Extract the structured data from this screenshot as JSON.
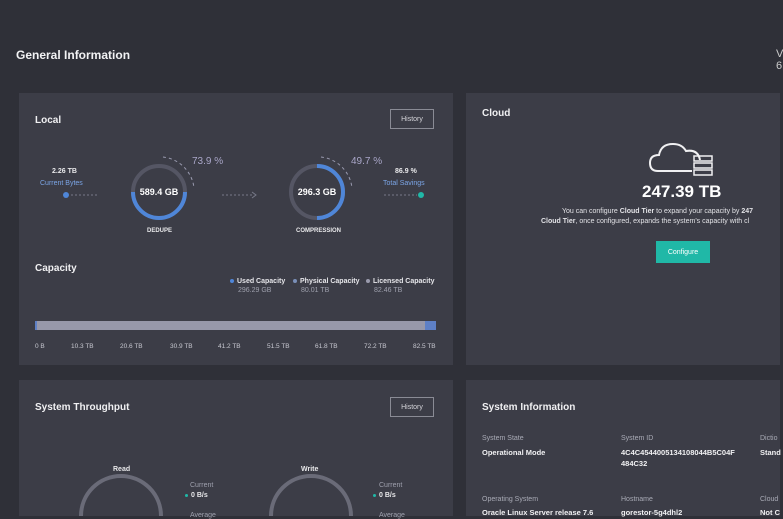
{
  "page": {
    "title": "General Information",
    "corner": "V\n6"
  },
  "local": {
    "title": "Local",
    "history": "History",
    "current_bytes_value": "2.26 TB",
    "current_bytes_label": "Current Bytes",
    "dedupe_value": "589.4 GB",
    "dedupe_pct": "73.9 %",
    "dedupe_label": "DEDUPE",
    "compression_value": "296.3 GB",
    "compression_pct": "49.7 %",
    "compression_label": "COMPRESSION",
    "total_savings_value": "86.9 %",
    "total_savings_label": "Total Savings"
  },
  "capacity": {
    "title": "Capacity",
    "legend": [
      {
        "label": "Used Capacity",
        "value": "296.29 GB",
        "color": "#4f86d8"
      },
      {
        "label": "Physical Capacity",
        "value": "80.01 TB",
        "color": "#7a8fb8"
      },
      {
        "label": "Licensed Capacity",
        "value": "82.46 TB",
        "color": "#9a9bad"
      }
    ],
    "ticks": [
      "0 B",
      "10.3 TB",
      "20.6 TB",
      "30.9 TB",
      "41.2 TB",
      "51.5 TB",
      "61.8 TB",
      "72.2 TB",
      "82.5 TB"
    ]
  },
  "cloud": {
    "title": "Cloud",
    "value": "247.39 TB",
    "line1_pre": "You can configure ",
    "line1_bold": "Cloud Tier",
    "line1_post": " to expand your capacity by ",
    "line1_tail": "247",
    "line2_bold": "Cloud Tier",
    "line2_post": ", once configured, expands the system's capacity with cl",
    "configure": "Configure"
  },
  "throughput": {
    "title": "System Throughput",
    "history": "History",
    "read_label": "Read",
    "write_label": "Write",
    "current_label": "Current",
    "read_current": "0 B/s",
    "write_current": "0 B/s",
    "avg_label": "Average"
  },
  "sysinfo": {
    "title": "System Information",
    "state_label": "System State",
    "state_value": "Operational Mode",
    "id_label": "System ID",
    "id_value_1": "4C4C4544005134108044B5C04F",
    "id_value_2": "484C32",
    "dict_label": "Dictio",
    "dict_value": "Stand",
    "os_label": "Operating System",
    "os_value": "Oracle Linux Server release 7.6",
    "host_label": "Hostname",
    "host_value": "gorestor-5g4dhl2",
    "cloud_label": "Cloud",
    "cloud_value": "Not C"
  },
  "colors": {
    "accent": "#4f86d8",
    "teal": "#20b8a7",
    "bg": "#2f3038",
    "card": "#3c3d47"
  }
}
